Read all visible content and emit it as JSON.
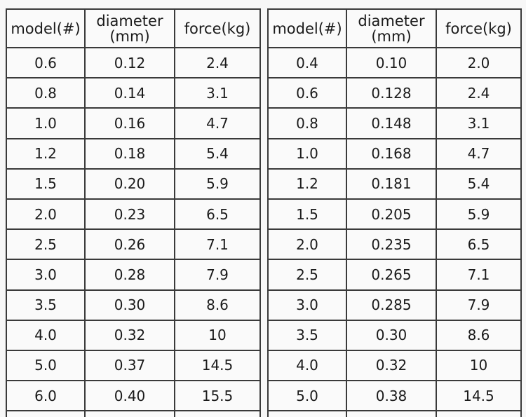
{
  "tables": [
    {
      "headers": [
        "model(#)",
        "diameter (mm)",
        "force(kg)"
      ],
      "rows": [
        [
          "0.6",
          "0.12",
          "2.4"
        ],
        [
          "0.8",
          "0.14",
          "3.1"
        ],
        [
          "1.0",
          "0.16",
          "4.7"
        ],
        [
          "1.2",
          "0.18",
          "5.4"
        ],
        [
          "1.5",
          "0.20",
          "5.9"
        ],
        [
          "2.0",
          "0.23",
          "6.5"
        ],
        [
          "2.5",
          "0.26",
          "7.1"
        ],
        [
          "3.0",
          "0.28",
          "7.9"
        ],
        [
          "3.5",
          "0.30",
          "8.6"
        ],
        [
          "4.0",
          "0.32",
          "10"
        ],
        [
          "5.0",
          "0.37",
          "14.5"
        ],
        [
          "6.0",
          "0.40",
          "15.5"
        ]
      ]
    },
    {
      "headers": [
        "model(#)",
        "diameter (mm)",
        "force(kg)"
      ],
      "rows": [
        [
          "0.4",
          "0.10",
          "2.0"
        ],
        [
          "0.6",
          "0.128",
          "2.4"
        ],
        [
          "0.8",
          "0.148",
          "3.1"
        ],
        [
          "1.0",
          "0.168",
          "4.7"
        ],
        [
          "1.2",
          "0.181",
          "5.4"
        ],
        [
          "1.5",
          "0.205",
          "5.9"
        ],
        [
          "2.0",
          "0.235",
          "6.5"
        ],
        [
          "2.5",
          "0.265",
          "7.1"
        ],
        [
          "3.0",
          "0.285",
          "7.9"
        ],
        [
          "3.5",
          "0.30",
          "8.6"
        ],
        [
          "4.0",
          "0.32",
          "10"
        ],
        [
          "5.0",
          "0.38",
          "14.5"
        ]
      ]
    }
  ]
}
